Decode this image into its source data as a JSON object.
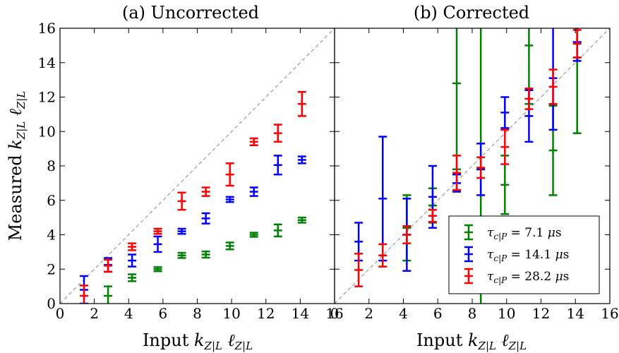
{
  "chart_data": [
    {
      "type": "scatter",
      "title": "(a) Uncorrected",
      "xlabel": "Input k_{Z|L} ℓ_{Z|L}",
      "ylabel": "Measured k_{Z|L} ℓ_{Z|L}",
      "xlim": [
        0,
        16
      ],
      "ylim": [
        0,
        16
      ],
      "xticks": [
        0,
        2,
        4,
        6,
        8,
        10,
        12,
        14,
        16
      ],
      "yticks": [
        0,
        2,
        4,
        6,
        8,
        10,
        12,
        14,
        16
      ],
      "reference_line": "y = x (dashed gray)",
      "series": [
        {
          "color": "#008000",
          "x": [
            2.8,
            4.2,
            5.7,
            7.1,
            8.5,
            9.9,
            11.3,
            12.7,
            14.1
          ],
          "y": [
            0.45,
            1.5,
            2.0,
            2.8,
            2.85,
            3.35,
            4.0,
            4.25,
            4.85
          ],
          "err": [
            0.55,
            0.2,
            0.12,
            0.15,
            0.18,
            0.2,
            0.12,
            0.35,
            0.15
          ]
        },
        {
          "color": "#0000ff",
          "x": [
            1.4,
            2.8,
            4.2,
            5.7,
            7.1,
            8.5,
            9.9,
            11.3,
            12.7,
            14.1
          ],
          "y": [
            0.8,
            2.25,
            2.5,
            3.45,
            4.2,
            4.95,
            6.05,
            6.5,
            8.05,
            8.35
          ],
          "err": [
            0.8,
            0.4,
            0.35,
            0.45,
            0.15,
            0.3,
            0.15,
            0.25,
            0.55,
            0.2
          ]
        },
        {
          "color": "#ff0000",
          "x": [
            1.4,
            2.8,
            4.2,
            5.7,
            7.1,
            8.5,
            9.9,
            11.3,
            12.7,
            14.1
          ],
          "y": [
            0.45,
            2.2,
            3.3,
            4.2,
            5.95,
            6.5,
            7.5,
            9.4,
            9.9,
            11.6
          ],
          "err": [
            0.6,
            0.35,
            0.2,
            0.15,
            0.5,
            0.25,
            0.65,
            0.2,
            0.5,
            0.7
          ]
        }
      ]
    },
    {
      "type": "scatter",
      "title": "(b) Corrected",
      "xlabel": "Input k_{Z|L} ℓ_{Z|L}",
      "ylabel": "",
      "xlim": [
        0,
        16
      ],
      "ylim": [
        0,
        16
      ],
      "xticks": [
        0,
        2,
        4,
        6,
        8,
        10,
        12,
        14,
        16
      ],
      "reference_line": "y = x (dashed gray)",
      "legend_position": "lower-right",
      "series": [
        {
          "name": "τ_{c|P} = 7.1 μs",
          "color": "#008000",
          "x": [
            4.2,
            5.7,
            7.1,
            8.5,
            9.9,
            11.3,
            12.7,
            14.1
          ],
          "y": [
            4.4,
            5.7,
            12.8,
            7.8,
            6.9,
            15.0,
            8.9,
            14.3
          ],
          "err": [
            1.9,
            1.0,
            5.0,
            9.5,
            1.7,
            3.4,
            2.6,
            4.4
          ]
        },
        {
          "name": "τ_{c|P} = 14.1 μs",
          "color": "#0000ff",
          "x": [
            1.4,
            2.8,
            4.2,
            5.7,
            7.1,
            8.5,
            9.9,
            11.3,
            12.7,
            14.1
          ],
          "y": [
            3.6,
            6.1,
            4.0,
            6.2,
            7.0,
            7.8,
            11.1,
            10.9,
            13.1,
            15.2
          ],
          "err": [
            1.1,
            3.6,
            2.1,
            1.8,
            0.5,
            1.5,
            0.9,
            1.5,
            3.0,
            1.1
          ]
        },
        {
          "name": "τ_{c|P} = 28.2 μs",
          "color": "#ff0000",
          "x": [
            1.4,
            2.8,
            4.2,
            5.7,
            7.1,
            8.5,
            9.9,
            11.3,
            12.7,
            14.1
          ],
          "y": [
            1.95,
            2.8,
            4.0,
            5.1,
            7.6,
            7.9,
            9.1,
            11.9,
            12.6,
            15.1
          ],
          "err": [
            0.95,
            0.65,
            0.5,
            0.35,
            1.0,
            0.6,
            1.0,
            0.6,
            1.0,
            0.8
          ]
        }
      ]
    }
  ]
}
